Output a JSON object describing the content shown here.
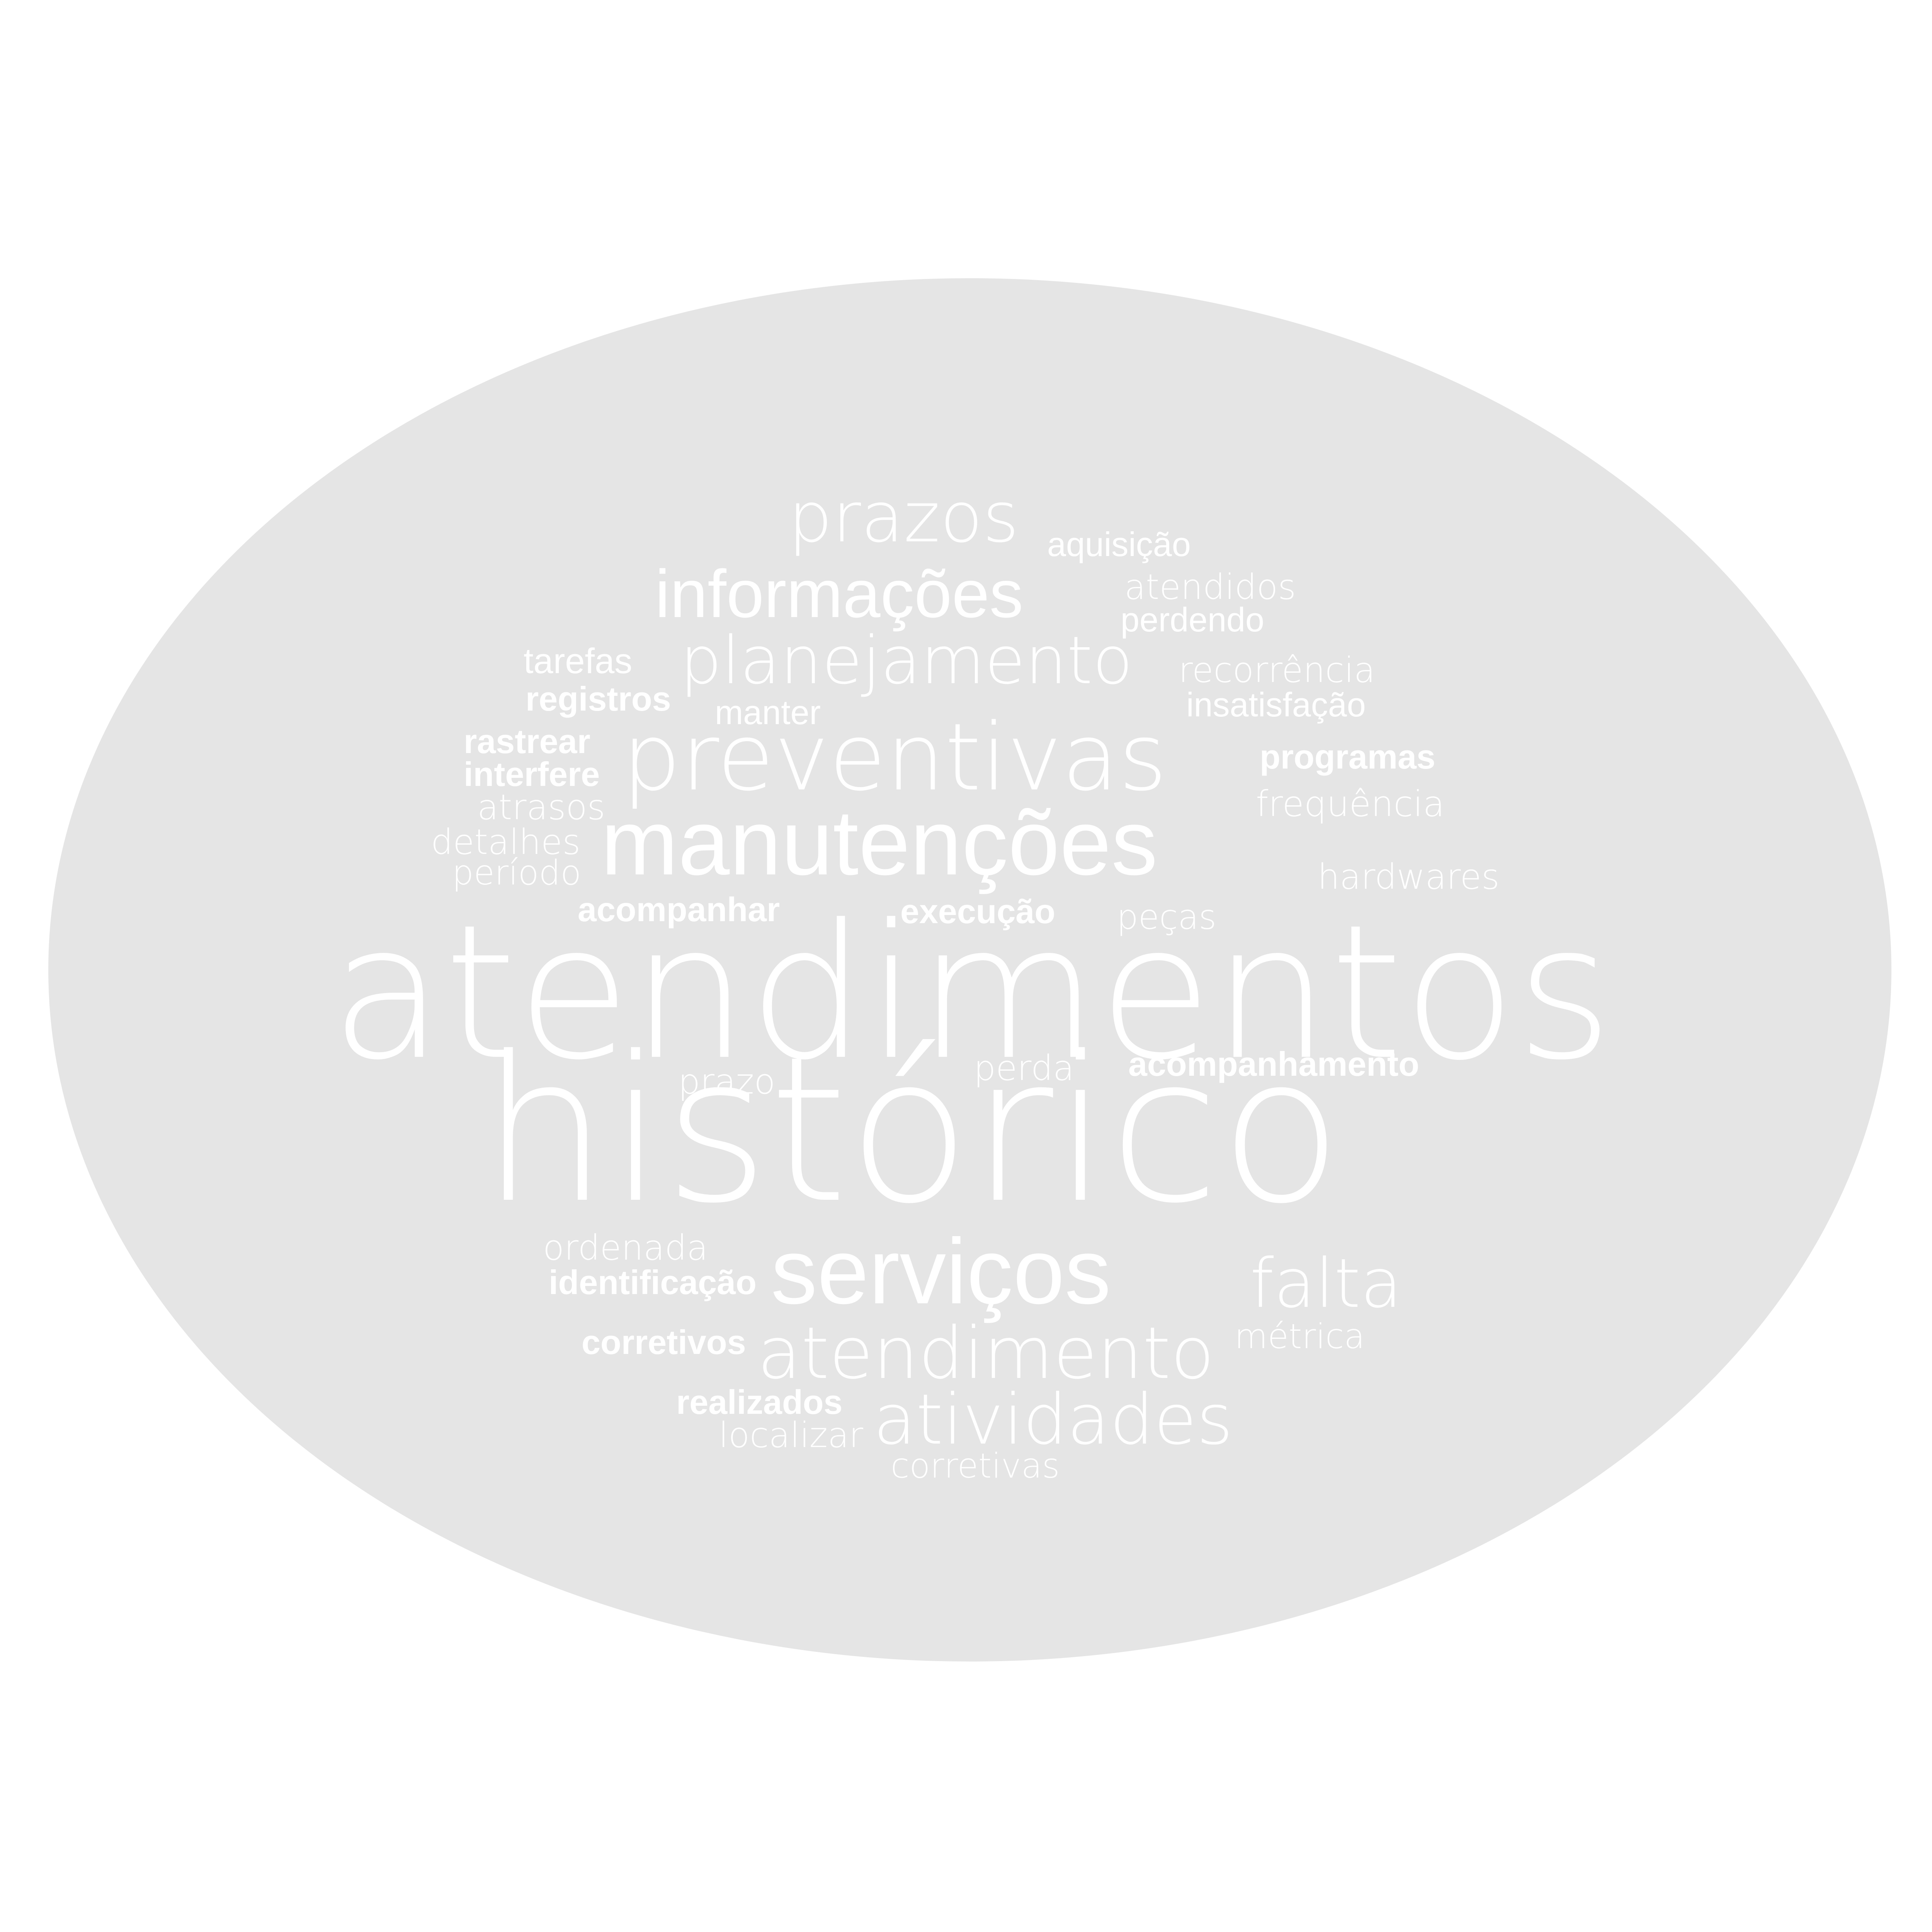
{
  "background_color": "#ffffff",
  "ellipse_color": "#e5e5e5",
  "word_color": "#ffffff",
  "words": {
    "prazos": "prazos",
    "aquisicao": "aquisição",
    "informacoes": "informações",
    "atendidos": "atendidos",
    "perdendo": "perdendo",
    "tarefas": "tarefas",
    "planejamento": "planejamento",
    "recorrencia": "recorrência",
    "registros": "registros",
    "manter": "manter",
    "insatisfacao": "insatisfação",
    "rastrear": "rastrear",
    "preventivas": "preventivas",
    "programas": "programas",
    "interfere": "interfere",
    "atrasos": "atrasos",
    "frequencia": "frequência",
    "detalhes": "detalhes",
    "manutencoes": "manutenções",
    "periodo": "período",
    "hardwares": "hardwares",
    "acompanhar": "acompanhar",
    "execucao": "execução",
    "pecas": "peças",
    "atendimentos": "atendimentos",
    "perda": "perda",
    "acompanhamento": "acompanhamento",
    "prazo": "prazo",
    "historico": "histórico",
    "ordenada": "ordenada",
    "identificacao": "identificação",
    "servicos": "serviços",
    "falta": "falta",
    "corretivos": "corretivos",
    "atendimento": "atendimento",
    "metrica": "métrica",
    "realizados": "realizados",
    "atividades": "atividades",
    "localizar": "localizar",
    "corretivas": "corretivas"
  }
}
